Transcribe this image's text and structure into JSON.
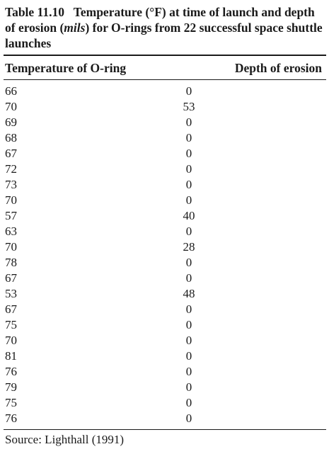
{
  "caption": {
    "label": "Table 11.10",
    "text_before_italic": "Temperature (°F) at time of launch and depth of erosion (",
    "italic": "mils",
    "text_after_italic": ") for O-rings from 22 successful space shuttle launches"
  },
  "table": {
    "headers": {
      "temperature": "Temperature of O-ring",
      "depth": "Depth of erosion"
    },
    "rows": [
      {
        "temperature": "66",
        "depth": "0"
      },
      {
        "temperature": "70",
        "depth": "53"
      },
      {
        "temperature": "69",
        "depth": "0"
      },
      {
        "temperature": "68",
        "depth": "0"
      },
      {
        "temperature": "67",
        "depth": "0"
      },
      {
        "temperature": "72",
        "depth": "0"
      },
      {
        "temperature": "73",
        "depth": "0"
      },
      {
        "temperature": "70",
        "depth": "0"
      },
      {
        "temperature": "57",
        "depth": "40"
      },
      {
        "temperature": "63",
        "depth": "0"
      },
      {
        "temperature": "70",
        "depth": "28"
      },
      {
        "temperature": "78",
        "depth": "0"
      },
      {
        "temperature": "67",
        "depth": "0"
      },
      {
        "temperature": "53",
        "depth": "48"
      },
      {
        "temperature": "67",
        "depth": "0"
      },
      {
        "temperature": "75",
        "depth": "0"
      },
      {
        "temperature": "70",
        "depth": "0"
      },
      {
        "temperature": "81",
        "depth": "0"
      },
      {
        "temperature": "76",
        "depth": "0"
      },
      {
        "temperature": "79",
        "depth": "0"
      },
      {
        "temperature": "75",
        "depth": "0"
      },
      {
        "temperature": "76",
        "depth": "0"
      }
    ]
  },
  "source": "Source: Lighthall (1991)"
}
